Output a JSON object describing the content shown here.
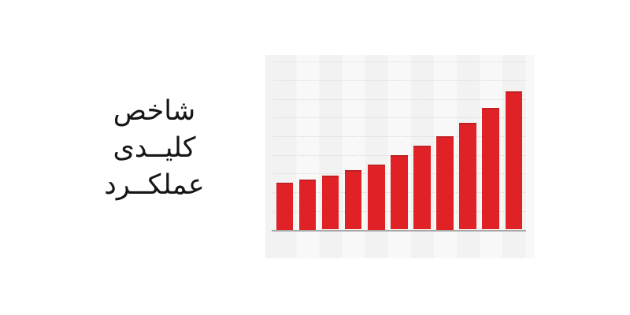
{
  "title": {
    "lines": [
      "شاخص",
      "کلیــدی",
      "عملکــرد"
    ],
    "full_text": "شاخص کلیدی عملکرد",
    "text_color": "#161616"
  },
  "chart_data": {
    "type": "bar",
    "title": "شاخص کلیدی عملکرد",
    "values": [
      25,
      27,
      29,
      32,
      35,
      40,
      45,
      50,
      57,
      65,
      74
    ],
    "xlabel": "",
    "ylabel": "",
    "ylim": [
      0,
      94
    ],
    "gridline_step": 10,
    "grid": "dotted-horizontal",
    "legend": "none",
    "bar_color": "#e02227",
    "bar_top_color": "#c32025",
    "axis_line_color": "#a8a8a8",
    "panel_stripe_colors": [
      "#f2f2f2",
      "#f8f8f8"
    ]
  }
}
